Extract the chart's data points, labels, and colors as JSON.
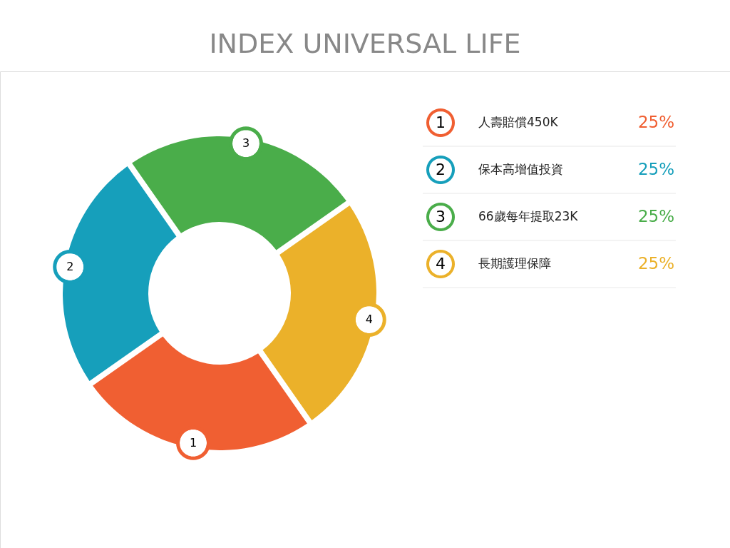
{
  "chart_data": {
    "type": "donut",
    "title": "INDEX UNIVERSAL LIFE",
    "categories": [
      "人壽賠償450K",
      "保本高增值投資",
      "66歲每年提取23K",
      "長期護理保障"
    ],
    "values": [
      25,
      25,
      25,
      25
    ],
    "colors": [
      "#f05f32",
      "#169fbb",
      "#4aad4a",
      "#ebb12a"
    ],
    "value_labels": [
      "25%",
      "25%",
      "25%",
      "25%"
    ],
    "annotations": [
      "1",
      "2",
      "3",
      "4"
    ],
    "legend": "right"
  }
}
